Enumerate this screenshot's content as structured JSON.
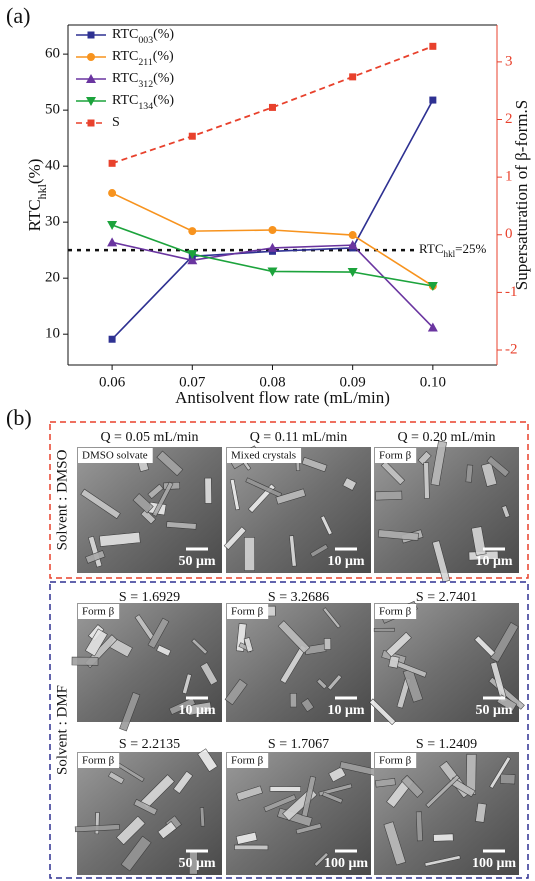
{
  "chart_data": {
    "type": "line",
    "panel_label": "(a)",
    "xlabel": "Antisolvent flow rate (mL/min)",
    "ylabel": "RTC",
    "ylabel_subscript": "hkl",
    "ylabel_unit": "(%)",
    "y2label": "Supersaturation of β-form.S",
    "x": [
      0.06,
      0.07,
      0.08,
      0.09,
      0.1
    ],
    "xlim": [
      0.0545,
      0.108
    ],
    "xticks": [
      0.06,
      0.07,
      0.08,
      0.09,
      {
        "value": 0.1,
        "label": "0.10"
      }
    ],
    "ylim": [
      4.5,
      65.2
    ],
    "yticks": [
      10,
      20,
      30,
      40,
      50,
      60
    ],
    "y2lim": [
      -2.26,
      3.64
    ],
    "y2ticks": [
      -2,
      -1,
      0,
      1,
      2,
      3
    ],
    "y2color": "#e8412c",
    "legend": "upper left",
    "hline": {
      "value": 25,
      "label": "RTC",
      "label_subscript": "hkl",
      "label_suffix": "=25%"
    },
    "series": [
      {
        "name": "RTC",
        "subscript": "003",
        "unit": "(%)",
        "color": "#2e3192",
        "marker": "square",
        "values": [
          9.1,
          23.9,
          24.8,
          25.4,
          51.8
        ]
      },
      {
        "name": "RTC",
        "subscript": "211",
        "unit": "(%)",
        "color": "#f7931e",
        "marker": "circle",
        "values": [
          35.2,
          28.4,
          28.6,
          27.7,
          18.6
        ]
      },
      {
        "name": "RTC",
        "subscript": "312",
        "unit": "(%)",
        "color": "#6a35a0",
        "marker": "triangle-up",
        "values": [
          26.4,
          23.2,
          25.4,
          25.9,
          11.2
        ]
      },
      {
        "name": "RTC",
        "subscript": "134",
        "unit": "(%)",
        "color": "#1ca33c",
        "marker": "triangle-down",
        "values": [
          29.5,
          24.3,
          21.2,
          21.1,
          18.6
        ]
      },
      {
        "name": "S",
        "color": "#e8412c",
        "marker": "square",
        "dashed": true,
        "axis": "y2",
        "values": [
          1.24,
          1.71,
          2.21,
          2.74,
          3.27
        ]
      }
    ]
  },
  "panel_b": {
    "panel_label": "(b)",
    "groups": [
      {
        "solvent": "Solvent : DMSO",
        "color": "#e8412c",
        "images": [
          {
            "caption": "Q = 0.05 mL/min",
            "tag": "DMSO solvate",
            "scale": "50 μm"
          },
          {
            "caption": "Q = 0.11 mL/min",
            "tag": "Mixed crystals",
            "scale": "10 μm"
          },
          {
            "caption": "Q = 0.20 mL/min",
            "tag": "Form β",
            "scale": "10 μm"
          }
        ]
      },
      {
        "solvent": "Solvent : DMF",
        "color": "#2e3192",
        "images": [
          {
            "caption": "S = 1.6929",
            "tag": "Form β",
            "scale": "10 μm"
          },
          {
            "caption": "S = 3.2686",
            "tag": "Form β",
            "scale": "10 μm"
          },
          {
            "caption": "S = 2.7401",
            "tag": "Form β",
            "scale": "50 μm"
          },
          {
            "caption": "S = 2.2135",
            "tag": "Form β",
            "scale": "50 μm"
          },
          {
            "caption": "S = 1.7067",
            "tag": "Form β",
            "scale": "100 μm"
          },
          {
            "caption": "S = 1.2409",
            "tag": "Form β",
            "scale": "100 μm"
          }
        ]
      }
    ]
  }
}
